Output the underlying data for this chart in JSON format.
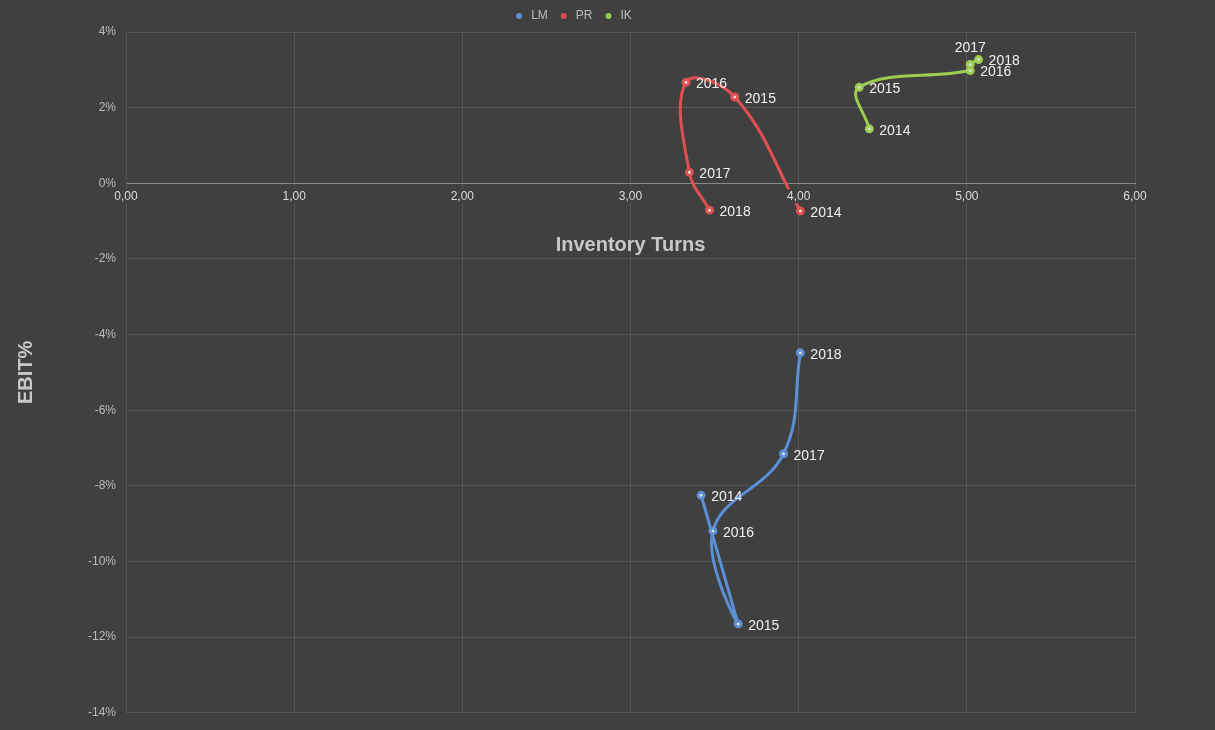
{
  "chart_data": {
    "type": "line",
    "xlabel": "Inventory Turns",
    "ylabel": "EBIT%",
    "xlim": [
      0,
      6
    ],
    "xticks": [
      {
        "value": 0,
        "label": "0,00"
      },
      {
        "value": 1,
        "label": "1,00"
      },
      {
        "value": 2,
        "label": "2,00"
      },
      {
        "value": 3,
        "label": "3,00"
      },
      {
        "value": 4,
        "label": "4,00"
      },
      {
        "value": 5,
        "label": "5,00"
      },
      {
        "value": 6,
        "label": "6,00"
      }
    ],
    "ylim": [
      -14,
      4
    ],
    "yticks": [
      {
        "value": -14,
        "label": "-14%"
      },
      {
        "value": -12,
        "label": "-12%"
      },
      {
        "value": -10,
        "label": "-10%"
      },
      {
        "value": -8,
        "label": "-8%"
      },
      {
        "value": -6,
        "label": "-6%"
      },
      {
        "value": -4,
        "label": "-4%"
      },
      {
        "value": -2,
        "label": "-2%"
      },
      {
        "value": 0,
        "label": "0%"
      },
      {
        "value": 2,
        "label": "2%"
      },
      {
        "value": 4,
        "label": "4%"
      }
    ],
    "grid": true,
    "legend": "top",
    "marker": "circle",
    "line_style": "solid",
    "series": [
      {
        "name": "LM",
        "color": "#5b8fd6",
        "x": [
          3.42,
          3.64,
          3.49,
          3.91,
          4.01
        ],
        "values": [
          -8.25,
          -11.65,
          -9.19,
          -7.15,
          -4.48
        ]
      },
      {
        "name": "PR",
        "color": "#e05050",
        "x": [
          4.01,
          3.62,
          3.33,
          3.35,
          3.47
        ],
        "values": [
          -0.73,
          2.28,
          2.67,
          0.29,
          -0.71
        ]
      },
      {
        "name": "IK",
        "color": "#9ccc50",
        "x": [
          4.42,
          4.36,
          5.02,
          5.02,
          5.07
        ],
        "values": [
          1.44,
          2.54,
          2.98,
          3.14,
          3.27
        ]
      }
    ],
    "annotations": [
      {
        "text": "2014",
        "x": 3.42,
        "y": -8.25
      },
      {
        "text": "2015",
        "x": 3.64,
        "y": -11.65
      },
      {
        "text": "2016",
        "x": 3.49,
        "y": -9.19
      },
      {
        "text": "2017",
        "x": 3.91,
        "y": -7.15
      },
      {
        "text": "2018",
        "x": 4.01,
        "y": -4.48
      },
      {
        "text": "2014",
        "x": 4.01,
        "y": -0.73
      },
      {
        "text": "2015",
        "x": 3.62,
        "y": 2.28
      },
      {
        "text": "2016",
        "x": 3.33,
        "y": 2.67
      },
      {
        "text": "2017",
        "x": 3.35,
        "y": 0.29
      },
      {
        "text": "2018",
        "x": 3.47,
        "y": -0.71
      },
      {
        "text": "2014",
        "x": 4.42,
        "y": 1.44
      },
      {
        "text": "2015",
        "x": 4.36,
        "y": 2.54
      },
      {
        "text": "2016",
        "x": 5.02,
        "y": 2.98
      },
      {
        "text": "2017",
        "x": 5.02,
        "y": 3.14
      },
      {
        "text": "2018",
        "x": 5.07,
        "y": 3.27
      }
    ]
  }
}
